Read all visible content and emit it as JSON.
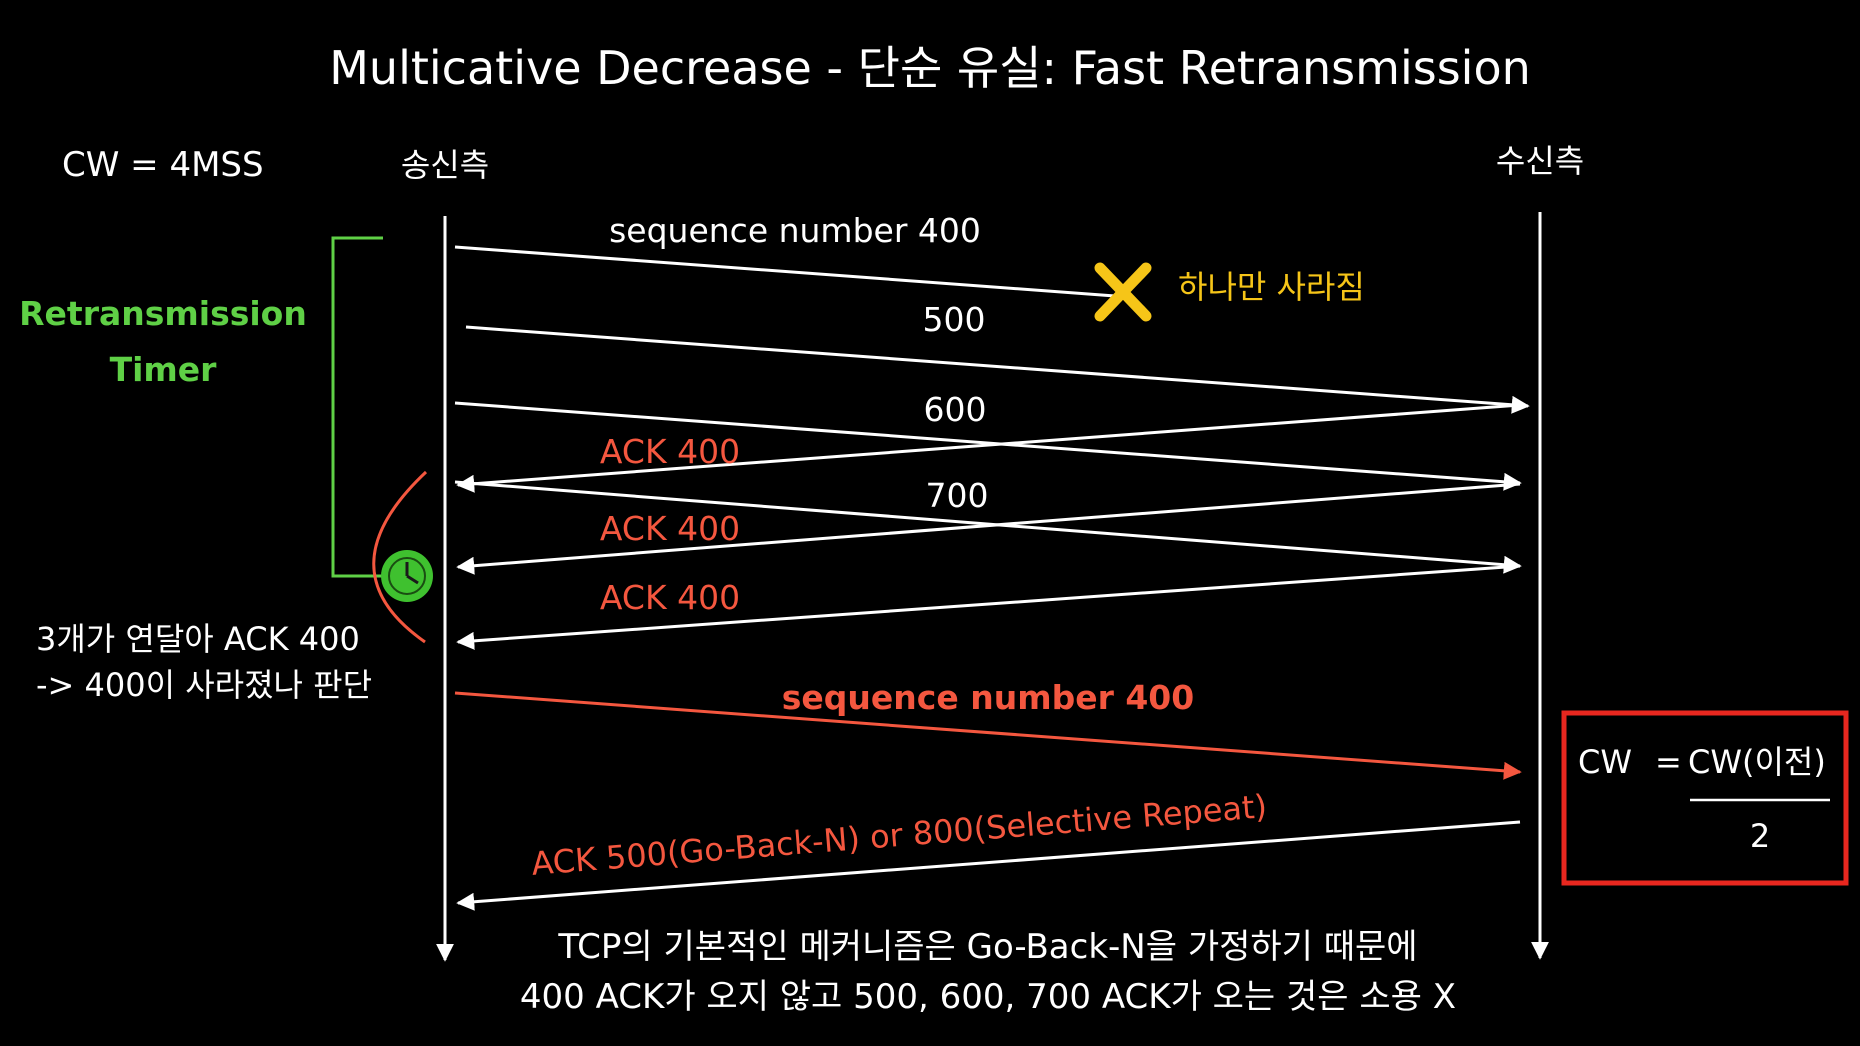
{
  "title": "Multicative Decrease - 단순 유실: Fast Retransmission",
  "cw_initial": "CW = 4MSS",
  "sender_label": "송신측",
  "receiver_label": "수신측",
  "timer_label_line1": "Retransmission",
  "timer_label_line2": "Timer",
  "segments": {
    "seq_400": "sequence number 400",
    "seq_500": "500",
    "seq_600": "600",
    "seq_700": "700",
    "lost_note": "하나만 사라짐"
  },
  "acks": {
    "ack_1": "ACK 400",
    "ack_2": "ACK 400",
    "ack_3": "ACK 400"
  },
  "triple_ack_note_line1": "3개가 연달아 ACK 400",
  "triple_ack_note_line2": "-> 400이 사라졌나 판단",
  "retransmit_label": "sequence number 400",
  "final_ack_label": "ACK 500(Go-Back-N) or 800(Selective Repeat)",
  "cw_formula": {
    "lhs": "CW",
    "eq": "=",
    "numerator": "CW(이전)",
    "denominator": "2"
  },
  "footer_line1": "TCP의 기본적인 메커니즘은 Go-Back-N을 가정하기 때문에",
  "footer_line2": "400 ACK가 오지 않고 500, 600, 700 ACK가 오는 것은 소용 X",
  "colors": {
    "background": "#000000",
    "text": "#ffffff",
    "green": "#5fd046",
    "orange_red": "#f4573f",
    "yellow": "#f6c518",
    "box_red": "#e8271f"
  }
}
